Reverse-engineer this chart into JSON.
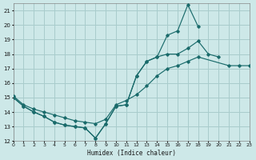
{
  "title": "",
  "xlabel": "Humidex (Indice chaleur)",
  "bg_color": "#cde8e8",
  "grid_color": "#a8cccc",
  "line_color": "#1a6b6b",
  "series": [
    {
      "x": [
        0,
        1,
        2,
        3,
        4,
        5,
        6,
        7,
        8,
        9,
        10,
        11,
        12,
        13,
        14,
        15,
        16,
        17,
        18
      ],
      "y": [
        15.0,
        14.4,
        14.0,
        13.7,
        13.3,
        13.1,
        13.0,
        12.9,
        12.2,
        13.2,
        14.4,
        14.5,
        16.5,
        17.5,
        17.8,
        19.3,
        19.6,
        21.4,
        19.9
      ]
    },
    {
      "x": [
        0,
        1,
        2,
        3,
        4,
        5,
        6,
        7,
        8,
        9,
        10,
        11,
        12,
        13,
        14,
        15,
        16,
        17,
        18,
        19,
        20
      ],
      "y": [
        15.0,
        14.4,
        14.0,
        13.7,
        13.3,
        13.1,
        13.0,
        12.9,
        12.2,
        13.2,
        14.4,
        14.5,
        16.5,
        17.5,
        17.8,
        18.0,
        18.0,
        18.4,
        18.9,
        18.0,
        17.8
      ]
    },
    {
      "x": [
        0,
        1,
        2,
        3,
        4,
        5,
        6,
        7,
        8,
        9,
        10,
        11,
        12,
        13,
        14,
        15,
        16,
        17,
        18,
        21,
        22,
        23
      ],
      "y": [
        15.1,
        14.5,
        14.2,
        14.0,
        13.8,
        13.6,
        13.4,
        13.3,
        13.2,
        13.5,
        14.5,
        14.8,
        15.2,
        15.8,
        16.5,
        17.0,
        17.2,
        17.5,
        17.8,
        17.2,
        17.2,
        17.2
      ]
    }
  ],
  "xlim": [
    0,
    23
  ],
  "ylim": [
    12,
    21.5
  ],
  "yticks": [
    12,
    13,
    14,
    15,
    16,
    17,
    18,
    19,
    20,
    21
  ],
  "xticks": [
    0,
    1,
    2,
    3,
    4,
    5,
    6,
    7,
    8,
    9,
    10,
    11,
    12,
    13,
    14,
    15,
    16,
    17,
    18,
    19,
    20,
    21,
    22,
    23
  ],
  "xtick_labels": [
    "0",
    "1",
    "2",
    "3",
    "4",
    "5",
    "6",
    "7",
    "8",
    "9",
    "10",
    "11",
    "12",
    "13",
    "14",
    "15",
    "16",
    "17",
    "18",
    "19",
    "20",
    "21",
    "22",
    "23"
  ]
}
